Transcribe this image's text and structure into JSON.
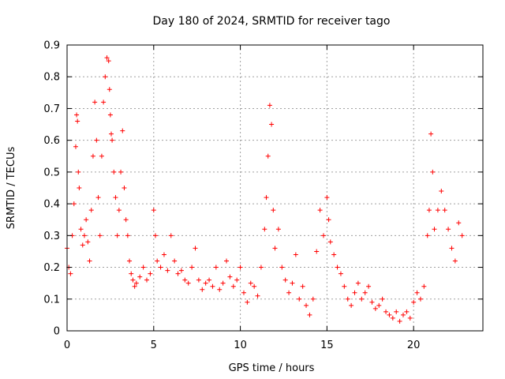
{
  "chart_data": {
    "type": "scatter",
    "title": "Day 180 of 2024, SRMTID for receiver tago",
    "xlabel": "GPS time / hours",
    "ylabel": "SRMTID / TECUs",
    "xlim": [
      0,
      24
    ],
    "ylim": [
      0,
      0.9
    ],
    "xticks": [
      0,
      5,
      10,
      15,
      20
    ],
    "xtick_labels": [
      "0",
      "5",
      "10",
      "15",
      "20"
    ],
    "yticks": [
      0,
      0.1,
      0.2,
      0.3,
      0.4,
      0.5,
      0.6,
      0.7,
      0.8,
      0.9
    ],
    "ytick_labels": [
      "0",
      "0.1",
      "0.2",
      "0.3",
      "0.4",
      "0.5",
      "0.6",
      "0.7",
      "0.8",
      "0.9"
    ],
    "grid": true,
    "marker": "+",
    "colors": {
      "points": "#ff0000",
      "axis": "#000000",
      "grid": "#a0a0a0"
    },
    "series": [
      {
        "name": "SRMTID",
        "x": [
          0.0,
          0.1,
          0.2,
          0.3,
          0.4,
          0.5,
          0.55,
          0.6,
          0.65,
          0.7,
          0.8,
          0.9,
          1.0,
          1.1,
          1.2,
          1.3,
          1.4,
          1.5,
          1.6,
          1.7,
          1.8,
          1.9,
          2.0,
          2.1,
          2.2,
          2.3,
          2.4,
          2.45,
          2.5,
          2.55,
          2.6,
          2.7,
          2.8,
          2.9,
          3.0,
          3.1,
          3.2,
          3.3,
          3.4,
          3.5,
          3.6,
          3.7,
          3.8,
          3.9,
          4.0,
          4.2,
          4.4,
          4.6,
          4.8,
          5.0,
          5.1,
          5.2,
          5.4,
          5.6,
          5.8,
          6.0,
          6.2,
          6.4,
          6.6,
          6.8,
          7.0,
          7.2,
          7.4,
          7.6,
          7.8,
          8.0,
          8.2,
          8.4,
          8.6,
          8.8,
          9.0,
          9.2,
          9.4,
          9.6,
          9.8,
          10.0,
          10.2,
          10.4,
          10.6,
          10.8,
          11.0,
          11.2,
          11.4,
          11.5,
          11.6,
          11.7,
          11.8,
          11.9,
          12.0,
          12.2,
          12.4,
          12.6,
          12.8,
          13.0,
          13.2,
          13.4,
          13.6,
          13.8,
          14.0,
          14.2,
          14.4,
          14.6,
          14.8,
          15.0,
          15.1,
          15.2,
          15.4,
          15.6,
          15.8,
          16.0,
          16.2,
          16.4,
          16.6,
          16.8,
          17.0,
          17.2,
          17.4,
          17.6,
          17.8,
          18.0,
          18.2,
          18.4,
          18.6,
          18.8,
          19.0,
          19.2,
          19.4,
          19.6,
          19.8,
          20.0,
          20.2,
          20.4,
          20.6,
          20.8,
          20.9,
          21.0,
          21.1,
          21.2,
          21.4,
          21.6,
          21.8,
          22.0,
          22.2,
          22.4,
          22.6,
          22.8
        ],
        "y": [
          0.26,
          0.2,
          0.18,
          0.3,
          0.4,
          0.58,
          0.68,
          0.66,
          0.5,
          0.45,
          0.32,
          0.27,
          0.3,
          0.35,
          0.28,
          0.22,
          0.38,
          0.55,
          0.72,
          0.6,
          0.42,
          0.3,
          0.55,
          0.72,
          0.8,
          0.86,
          0.85,
          0.76,
          0.68,
          0.62,
          0.6,
          0.5,
          0.42,
          0.3,
          0.38,
          0.5,
          0.63,
          0.45,
          0.35,
          0.3,
          0.22,
          0.18,
          0.16,
          0.14,
          0.15,
          0.17,
          0.2,
          0.16,
          0.18,
          0.38,
          0.3,
          0.22,
          0.2,
          0.24,
          0.19,
          0.3,
          0.22,
          0.18,
          0.19,
          0.16,
          0.15,
          0.2,
          0.26,
          0.16,
          0.13,
          0.15,
          0.16,
          0.14,
          0.2,
          0.13,
          0.15,
          0.22,
          0.17,
          0.14,
          0.16,
          0.2,
          0.12,
          0.09,
          0.15,
          0.14,
          0.11,
          0.2,
          0.32,
          0.42,
          0.55,
          0.71,
          0.65,
          0.38,
          0.26,
          0.32,
          0.2,
          0.16,
          0.12,
          0.15,
          0.24,
          0.1,
          0.14,
          0.08,
          0.05,
          0.1,
          0.25,
          0.38,
          0.3,
          0.42,
          0.35,
          0.28,
          0.24,
          0.2,
          0.18,
          0.14,
          0.1,
          0.08,
          0.12,
          0.15,
          0.1,
          0.12,
          0.14,
          0.09,
          0.07,
          0.08,
          0.1,
          0.06,
          0.05,
          0.04,
          0.06,
          0.03,
          0.05,
          0.06,
          0.04,
          0.09,
          0.12,
          0.1,
          0.14,
          0.3,
          0.38,
          0.62,
          0.5,
          0.32,
          0.38,
          0.44,
          0.38,
          0.32,
          0.26,
          0.22,
          0.34,
          0.3
        ]
      }
    ]
  }
}
